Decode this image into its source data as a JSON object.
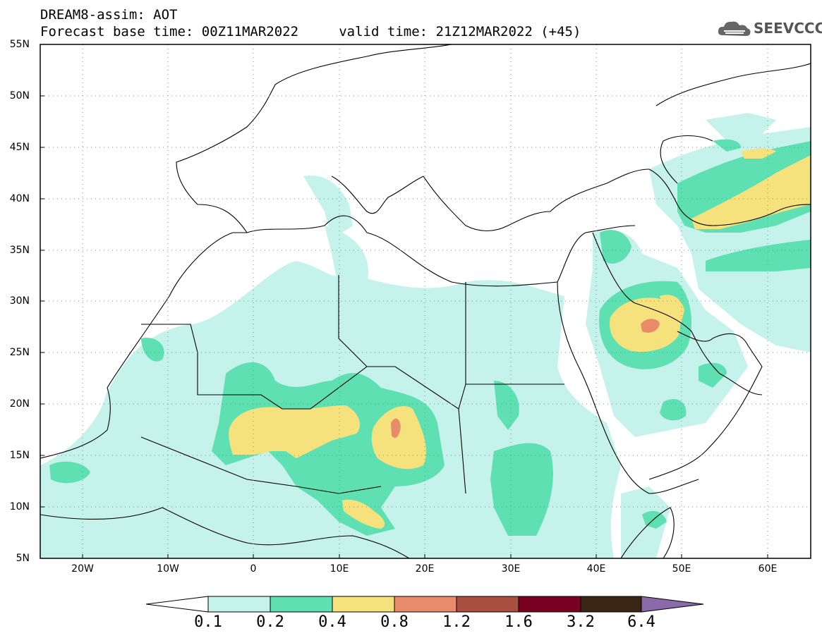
{
  "header": {
    "line1": "DREAM8-assim: AOT",
    "line2": "Forecast base time: 00Z11MAR2022     valid time: 21Z12MAR2022 (+45)"
  },
  "logo": {
    "text": "SEEVCCC",
    "icon": "cloud-icon"
  },
  "map": {
    "lon_range": [
      -25,
      65
    ],
    "lat_range": [
      5,
      55
    ],
    "projection": "plate-carree",
    "lat_labels": [
      "5N",
      "10N",
      "15N",
      "20N",
      "25N",
      "30N",
      "35N",
      "40N",
      "45N",
      "50N",
      "55N"
    ],
    "lon_labels": [
      "20W",
      "10W",
      "0",
      "10E",
      "20E",
      "30E",
      "40E",
      "50E",
      "60E"
    ],
    "grid": "dotted"
  },
  "colorbar": {
    "levels": [
      "0.1",
      "0.2",
      "0.4",
      "0.8",
      "1.2",
      "1.6",
      "3.2",
      "6.4"
    ],
    "colors": [
      "#c6f2ec",
      "#5fe0b3",
      "#f5e27c",
      "#e98b6a",
      "#a94f3f",
      "#7a0022",
      "#3b2614"
    ],
    "low_color": "#ffffff",
    "high_color": "#8b6aa9"
  },
  "colors": {
    "aot_0_1": "#c6f2ec",
    "aot_0_2": "#5fe0b3",
    "aot_0_4": "#f5e27c",
    "aot_0_8": "#e98b6a"
  }
}
